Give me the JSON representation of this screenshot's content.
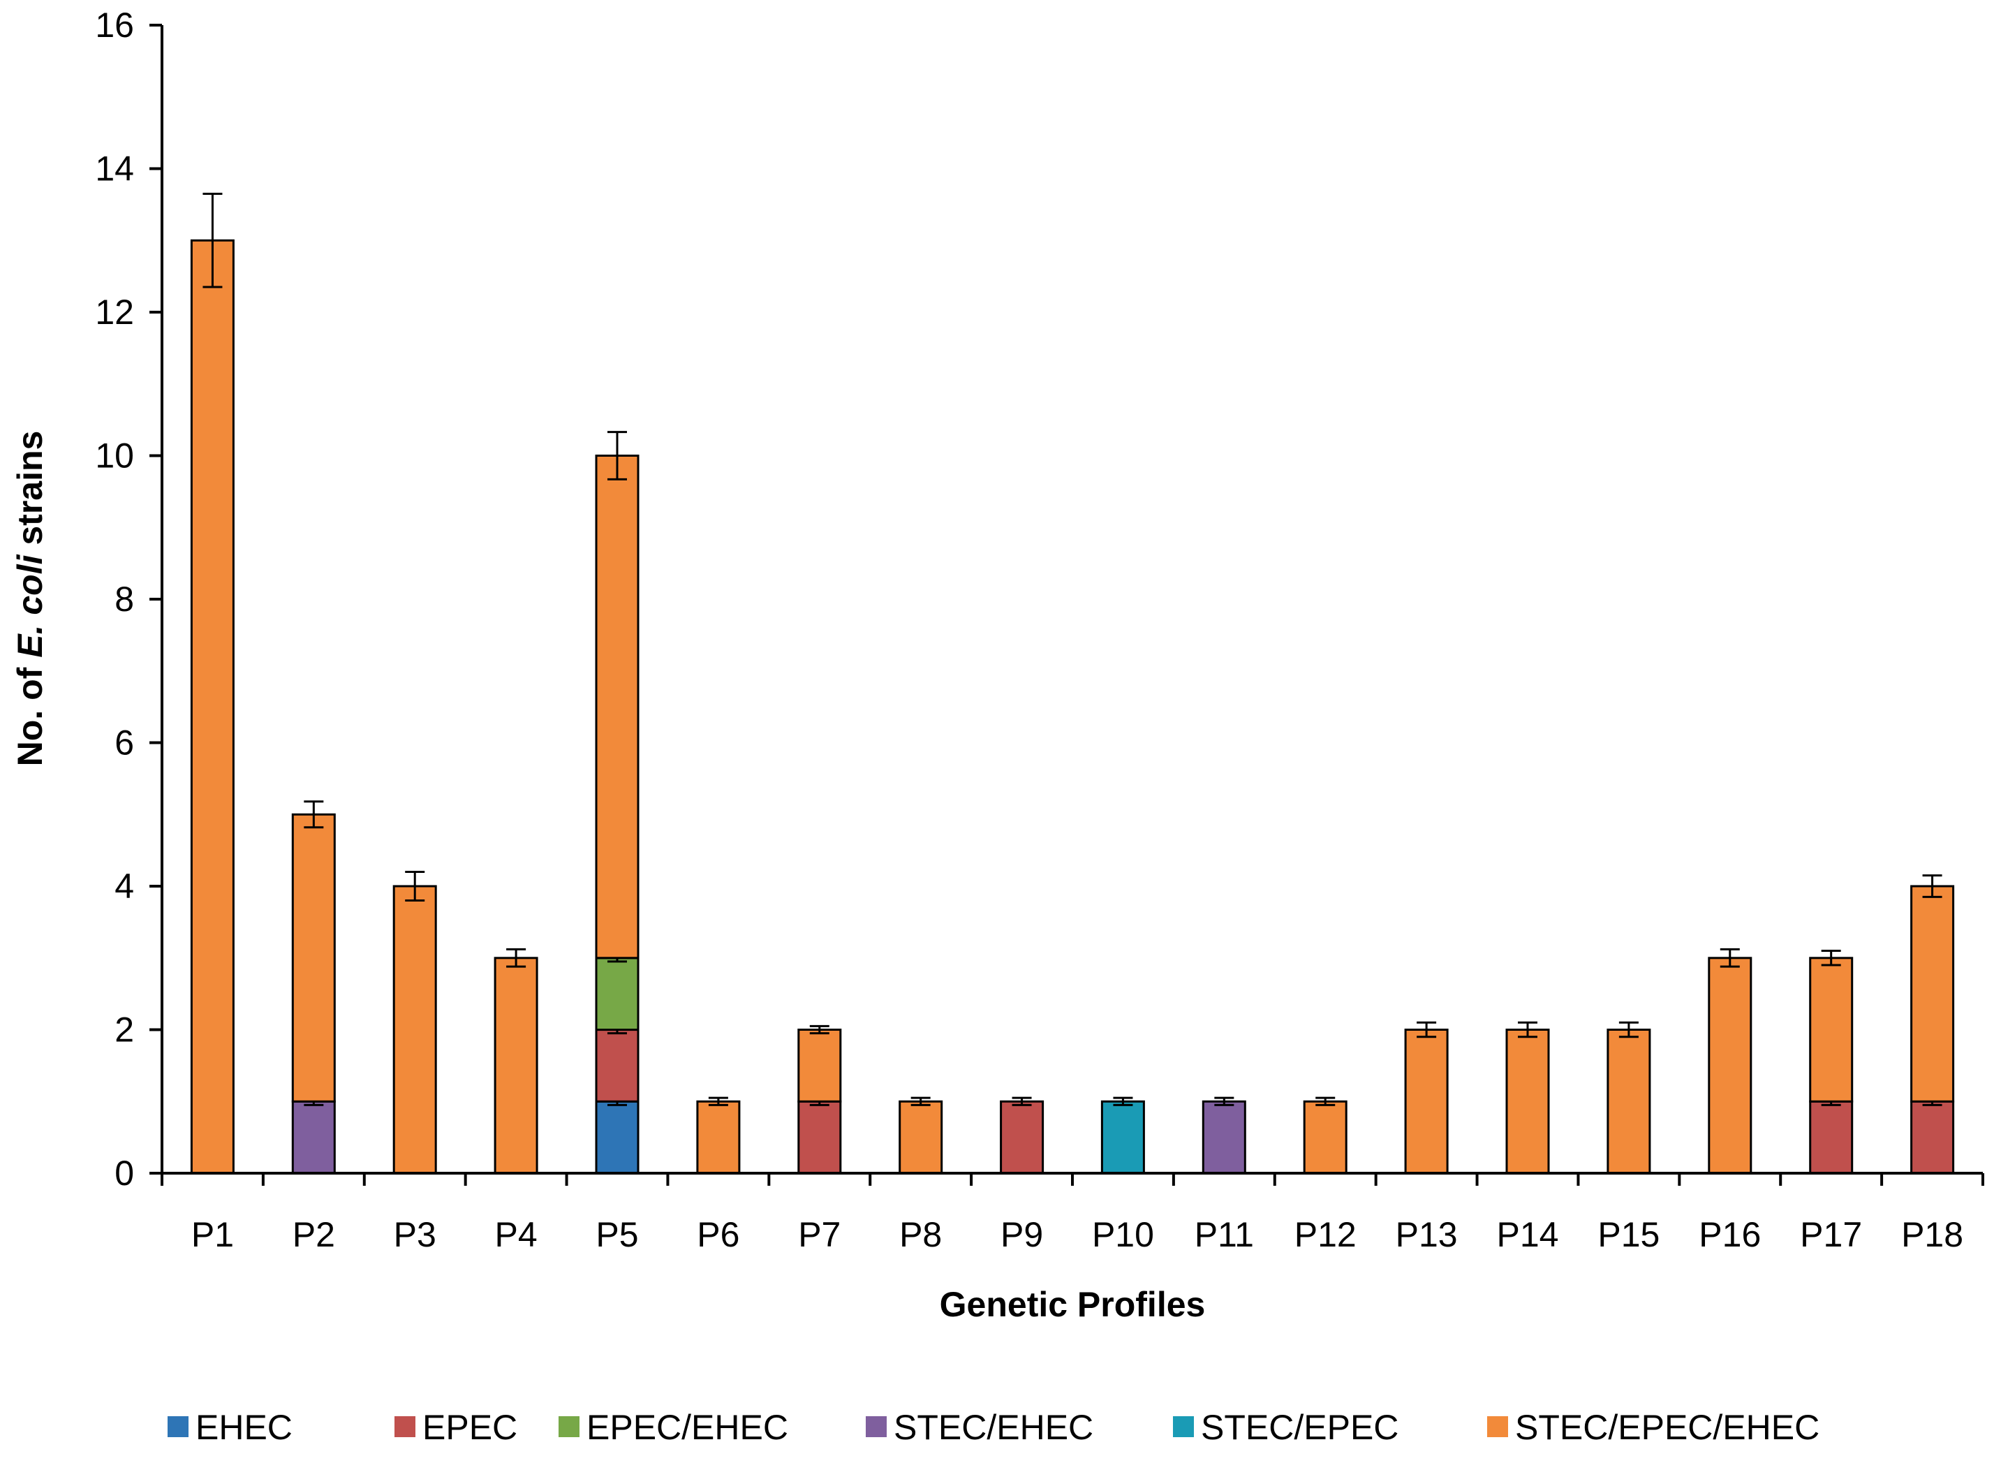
{
  "chart_data": {
    "type": "bar",
    "stacked": true,
    "title": "",
    "xlabel": "Genetic Profiles",
    "ylabel": {
      "prefix": "No. of ",
      "italic": "E. coli",
      "suffix": " strains"
    },
    "ylim": [
      0,
      16
    ],
    "ytick_step": 2,
    "yticks": [
      "0",
      "2",
      "4",
      "6",
      "8",
      "10",
      "12",
      "14",
      "16"
    ],
    "grid": false,
    "legend_position": "bottom",
    "categories": [
      "P1",
      "P2",
      "P3",
      "P4",
      "P5",
      "P6",
      "P7",
      "P8",
      "P9",
      "P10",
      "P11",
      "P12",
      "P13",
      "P14",
      "P15",
      "P16",
      "P17",
      "P18"
    ],
    "series": [
      {
        "name": "EHEC",
        "color": "#2E75B6",
        "values": [
          0,
          0,
          0,
          0,
          1,
          0,
          0,
          0,
          0,
          0,
          0,
          0,
          0,
          0,
          0,
          0,
          0,
          0
        ],
        "errors": [
          0,
          0,
          0,
          0,
          0.05,
          0,
          0,
          0,
          0,
          0,
          0,
          0,
          0,
          0,
          0,
          0,
          0,
          0
        ]
      },
      {
        "name": "EPEC",
        "color": "#C0504D",
        "values": [
          0,
          0,
          0,
          0,
          1,
          0,
          1,
          0,
          1,
          0,
          0,
          0,
          0,
          0,
          0,
          0,
          1,
          1
        ],
        "errors": [
          0,
          0,
          0,
          0,
          0.05,
          0,
          0.05,
          0,
          0.05,
          0,
          0,
          0,
          0,
          0,
          0,
          0,
          0.05,
          0.05
        ]
      },
      {
        "name": "EPEC/EHEC",
        "color": "#77A847",
        "values": [
          0,
          0,
          0,
          0,
          1,
          0,
          0,
          0,
          0,
          0,
          0,
          0,
          0,
          0,
          0,
          0,
          0,
          0
        ],
        "errors": [
          0,
          0,
          0,
          0,
          0.05,
          0,
          0,
          0,
          0,
          0,
          0,
          0,
          0,
          0,
          0,
          0,
          0,
          0
        ]
      },
      {
        "name": "STEC/EHEC",
        "color": "#7F5F9E",
        "values": [
          0,
          1,
          0,
          0,
          0,
          0,
          0,
          0,
          0,
          0,
          1,
          0,
          0,
          0,
          0,
          0,
          0,
          0
        ],
        "errors": [
          0,
          0.05,
          0,
          0,
          0,
          0,
          0,
          0,
          0,
          0,
          0.05,
          0,
          0,
          0,
          0,
          0,
          0,
          0
        ]
      },
      {
        "name": "STEC/EPEC",
        "color": "#1A9BB5",
        "values": [
          0,
          0,
          0,
          0,
          0,
          0,
          0,
          0,
          0,
          1,
          0,
          0,
          0,
          0,
          0,
          0,
          0,
          0
        ],
        "errors": [
          0,
          0,
          0,
          0,
          0,
          0,
          0,
          0,
          0,
          0.05,
          0,
          0,
          0,
          0,
          0,
          0,
          0,
          0
        ]
      },
      {
        "name": "STEC/EPEC/EHEC",
        "color": "#F28A3A",
        "values": [
          13,
          4,
          4,
          3,
          7,
          1,
          1,
          1,
          0,
          0,
          0,
          1,
          2,
          2,
          2,
          3,
          2,
          3
        ],
        "errors": [
          0.65,
          0.18,
          0.2,
          0.12,
          0.33,
          0.05,
          0.05,
          0.05,
          0,
          0,
          0,
          0.05,
          0.1,
          0.1,
          0.1,
          0.12,
          0.1,
          0.15
        ]
      }
    ]
  }
}
